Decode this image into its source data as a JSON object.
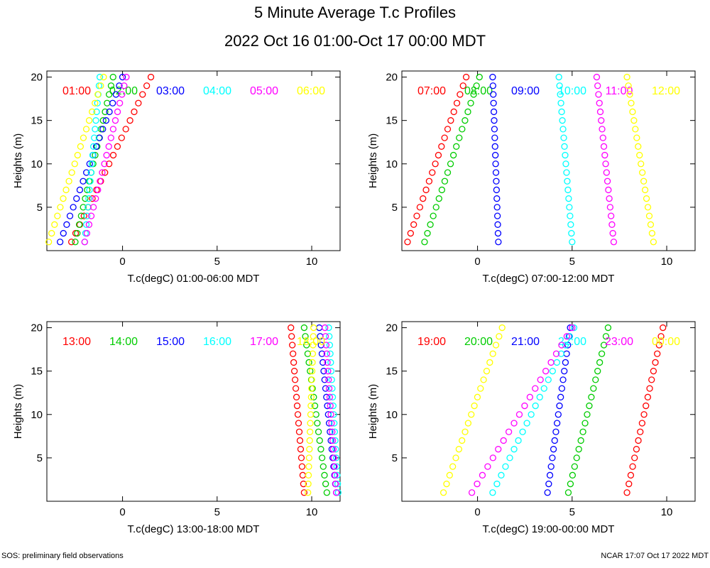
{
  "title": "5 Minute Average T.c Profiles",
  "subtitle": "2022 Oct 16 01:00-Oct 17 00:00 MDT",
  "footer_left": "SOS: preliminary field observations",
  "footer_right": "NCAR 17:07 Oct 17 2022 MDT",
  "chart_data": [
    {
      "type": "scatter",
      "xlabel": "T.c(degC) 01:00-06:00 MDT",
      "ylabel": "Heights (m)",
      "xlim": [
        -4,
        11.5
      ],
      "ylim": [
        0,
        20.7
      ],
      "xticks": [
        0,
        5,
        10
      ],
      "yticks": [
        5,
        10,
        15,
        20
      ],
      "series": [
        {
          "name": "01:00",
          "color": "#ff0000",
          "bottom": -2.7,
          "top": 1.5
        },
        {
          "name": "02:00",
          "color": "#00cc00",
          "bottom": -2.5,
          "top": -0.5
        },
        {
          "name": "03:00",
          "color": "#0000ff",
          "bottom": -3.3,
          "top": 0.0
        },
        {
          "name": "04:00",
          "color": "#00ffff",
          "bottom": -2.0,
          "top": -1.2
        },
        {
          "name": "05:00",
          "color": "#ff00ff",
          "bottom": -2.0,
          "top": 0.2
        },
        {
          "name": "06:00",
          "color": "#ffff00",
          "bottom": -3.9,
          "top": -1.0
        }
      ]
    },
    {
      "type": "scatter",
      "xlabel": "T.c(degC) 07:00-12:00 MDT",
      "ylabel": "Heights (m)",
      "xlim": [
        -4,
        11.5
      ],
      "ylim": [
        0,
        20.7
      ],
      "xticks": [
        0,
        5,
        10
      ],
      "yticks": [
        5,
        10,
        15,
        20
      ],
      "series": [
        {
          "name": "07:00",
          "color": "#ff0000",
          "bottom": -3.7,
          "top": -0.6
        },
        {
          "name": "08:00",
          "color": "#00cc00",
          "bottom": -2.8,
          "top": 0.1
        },
        {
          "name": "09:00",
          "color": "#0000ff",
          "bottom": 1.1,
          "top": 0.8
        },
        {
          "name": "10:00",
          "color": "#00ffff",
          "bottom": 5.0,
          "top": 4.3
        },
        {
          "name": "11:00",
          "color": "#ff00ff",
          "bottom": 7.2,
          "top": 6.3
        },
        {
          "name": "12:00",
          "color": "#ffff00",
          "bottom": 9.3,
          "top": 7.9
        }
      ]
    },
    {
      "type": "scatter",
      "xlabel": "T.c(degC) 13:00-18:00 MDT",
      "ylabel": "Heights (m)",
      "xlim": [
        -4,
        11.5
      ],
      "ylim": [
        0,
        20.7
      ],
      "xticks": [
        0,
        5,
        10
      ],
      "yticks": [
        5,
        10,
        15,
        20
      ],
      "series": [
        {
          "name": "13:00",
          "color": "#ff0000",
          "bottom": 9.6,
          "top": 8.9
        },
        {
          "name": "14:00",
          "color": "#00cc00",
          "bottom": 10.8,
          "top": 9.6
        },
        {
          "name": "15:00",
          "color": "#0000ff",
          "bottom": 11.3,
          "top": 10.4
        },
        {
          "name": "16:00",
          "color": "#00ffff",
          "bottom": 11.4,
          "top": 10.9
        },
        {
          "name": "17:00",
          "color": "#ff00ff",
          "bottom": 11.3,
          "top": 10.7
        },
        {
          "name": "18:00",
          "color": "#ffff00",
          "bottom": 9.8,
          "top": 10.1
        }
      ]
    },
    {
      "type": "scatter",
      "xlabel": "T.c(degC) 19:00-00:00 MDT",
      "ylabel": "Heights (m)",
      "xlim": [
        -4,
        11.5
      ],
      "ylim": [
        0,
        20.7
      ],
      "xticks": [
        0,
        5,
        10
      ],
      "yticks": [
        5,
        10,
        15,
        20
      ],
      "series": [
        {
          "name": "19:00",
          "color": "#ff0000",
          "bottom": 7.9,
          "top": 9.8
        },
        {
          "name": "20:00",
          "color": "#00cc00",
          "bottom": 4.8,
          "top": 6.9
        },
        {
          "name": "21:00",
          "color": "#0000ff",
          "bottom": 3.7,
          "top": 4.9
        },
        {
          "name": "22:00",
          "color": "#00ffff",
          "bottom": 0.8,
          "top": 5.1
        },
        {
          "name": "23:00",
          "color": "#ff00ff",
          "bottom": -0.3,
          "top": 5.0
        },
        {
          "name": "00:00",
          "color": "#ffff00",
          "bottom": -1.8,
          "top": 1.3
        }
      ]
    }
  ]
}
